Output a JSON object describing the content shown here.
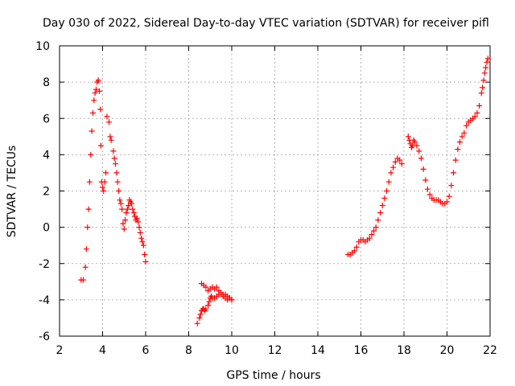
{
  "chart_data": {
    "type": "scatter",
    "title": "Day 030 of 2022, Sidereal Day-to-day VTEC variation (SDTVAR) for receiver pifl",
    "xlabel": "GPS time / hours",
    "ylabel": "SDTVAR / TECUs",
    "xlim": [
      2,
      22
    ],
    "ylim": [
      -6,
      10
    ],
    "xticks": [
      2,
      4,
      6,
      8,
      10,
      12,
      14,
      16,
      18,
      20,
      22
    ],
    "yticks": [
      -6,
      -4,
      -2,
      0,
      2,
      4,
      6,
      8,
      10
    ],
    "grid": true,
    "marker": "+",
    "color": "#ff0000",
    "series": [
      {
        "name": "SDTVAR",
        "x": [
          3.0,
          3.1,
          3.2,
          3.25,
          3.3,
          3.35,
          3.4,
          3.45,
          3.5,
          3.55,
          3.6,
          3.65,
          3.7,
          3.75,
          3.8,
          3.85,
          3.9,
          3.92,
          3.95,
          4.0,
          4.05,
          4.1,
          4.15,
          4.2,
          4.3,
          4.35,
          4.4,
          4.5,
          4.55,
          4.6,
          4.65,
          4.7,
          4.75,
          4.8,
          4.85,
          4.9,
          4.95,
          5.0,
          5.05,
          5.1,
          5.15,
          5.2,
          5.25,
          5.3,
          5.35,
          5.4,
          5.45,
          5.5,
          5.55,
          5.6,
          5.65,
          5.7,
          5.75,
          5.8,
          5.85,
          5.9,
          5.95,
          6.0,
          8.4,
          8.5,
          8.55,
          8.6,
          8.65,
          8.7,
          8.75,
          8.8,
          8.9,
          8.95,
          9.0,
          9.05,
          9.1,
          9.2,
          9.3,
          9.4,
          9.5,
          9.6,
          9.7,
          9.8,
          9.9,
          10.0,
          8.6,
          8.7,
          8.8,
          8.9,
          9.0,
          9.1,
          9.2,
          9.3,
          9.4,
          9.5,
          9.6,
          9.7,
          9.8,
          9.9,
          10.0,
          15.4,
          15.5,
          15.6,
          15.7,
          15.8,
          15.9,
          16.0,
          16.1,
          16.2,
          16.3,
          16.4,
          16.5,
          16.6,
          16.7,
          16.8,
          16.9,
          17.0,
          17.1,
          17.2,
          17.3,
          17.4,
          17.5,
          17.6,
          17.7,
          17.8,
          17.9,
          18.2,
          18.25,
          18.3,
          18.35,
          18.4,
          18.45,
          18.5,
          18.6,
          18.7,
          18.8,
          18.9,
          19.0,
          19.1,
          19.2,
          19.3,
          19.4,
          19.5,
          19.6,
          19.7,
          19.8,
          19.9,
          20.0,
          20.1,
          20.2,
          20.3,
          20.4,
          20.5,
          20.6,
          20.7,
          20.8,
          20.9,
          21.0,
          21.1,
          21.2,
          21.3,
          21.4,
          21.5,
          21.6,
          21.65,
          21.7,
          21.75,
          21.8,
          21.85,
          21.9
        ],
        "y": [
          -2.9,
          -2.9,
          -2.2,
          -1.2,
          0.0,
          1.0,
          2.5,
          4.0,
          5.3,
          6.3,
          7.0,
          7.4,
          7.6,
          8.0,
          8.1,
          7.5,
          6.5,
          4.5,
          2.5,
          2.2,
          2.0,
          2.5,
          3.0,
          6.1,
          5.8,
          5.0,
          4.8,
          4.2,
          3.8,
          3.5,
          3.0,
          2.5,
          2.0,
          1.5,
          1.3,
          1.0,
          0.2,
          -0.1,
          0.4,
          0.8,
          1.0,
          1.2,
          1.5,
          1.4,
          1.3,
          1.0,
          0.8,
          0.6,
          0.4,
          0.5,
          0.3,
          0.0,
          -0.3,
          -0.6,
          -0.8,
          -1.0,
          -1.5,
          -1.9,
          -5.3,
          -5.0,
          -4.8,
          -4.6,
          -4.5,
          -4.5,
          -4.6,
          -4.5,
          -4.3,
          -4.1,
          -3.9,
          -3.8,
          -3.9,
          -3.9,
          -3.8,
          -3.7,
          -3.7,
          -3.8,
          -3.9,
          -4.0,
          -3.9,
          -4.0,
          -3.1,
          -3.2,
          -3.3,
          -3.5,
          -3.4,
          -3.3,
          -3.4,
          -3.3,
          -3.5,
          -3.6,
          -3.7,
          -3.7,
          -3.8,
          -3.9,
          -4.0,
          -1.5,
          -1.5,
          -1.4,
          -1.3,
          -1.1,
          -0.8,
          -0.7,
          -0.7,
          -0.8,
          -0.7,
          -0.6,
          -0.4,
          -0.2,
          0.0,
          0.4,
          0.8,
          1.2,
          1.6,
          2.0,
          2.5,
          3.0,
          3.3,
          3.6,
          3.8,
          3.7,
          3.5,
          5.0,
          4.8,
          4.6,
          4.4,
          4.5,
          4.8,
          4.7,
          4.5,
          4.2,
          3.8,
          3.2,
          2.6,
          2.1,
          1.8,
          1.6,
          1.5,
          1.5,
          1.5,
          1.4,
          1.3,
          1.3,
          1.4,
          1.7,
          2.3,
          3.0,
          3.7,
          4.3,
          4.7,
          5.0,
          5.2,
          5.6,
          5.8,
          5.9,
          6.0,
          6.1,
          6.3,
          6.7,
          7.4,
          7.7,
          8.1,
          8.5,
          8.8,
          9.1,
          9.3
        ]
      }
    ]
  }
}
